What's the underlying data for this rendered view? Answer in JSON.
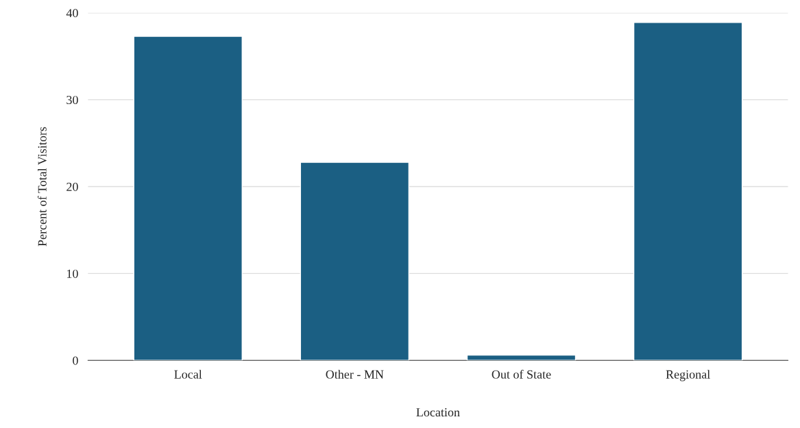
{
  "chart_data": {
    "type": "bar",
    "xlabel": "Location",
    "ylabel": "Percent of Total Visitors",
    "categories": [
      "Local",
      "Other - MN",
      "Out of State",
      "Regional"
    ],
    "values": [
      37.3,
      22.8,
      0.6,
      38.9
    ],
    "color": "#1b5f83",
    "ylim": [
      0,
      40
    ],
    "yticks": [
      0,
      10,
      20,
      30,
      40
    ],
    "grid": "y"
  }
}
